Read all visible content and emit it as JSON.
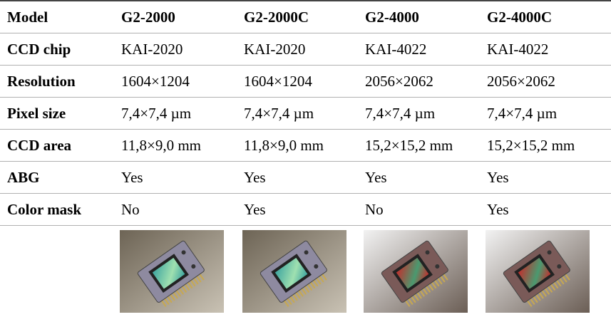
{
  "table": {
    "header": [
      "Model",
      "G2-2000",
      "G2-2000C",
      "G2-4000",
      "G2-4000C"
    ],
    "rows": [
      [
        "CCD chip",
        "KAI-2020",
        "KAI-2020",
        "KAI-4022",
        "KAI-4022"
      ],
      [
        "Resolution",
        "1604×1204",
        "1604×1204",
        "2056×2062",
        "2056×2062"
      ],
      [
        "Pixel size",
        "7,4×7,4 µm",
        "7,4×7,4 µm",
        "7,4×7,4 µm",
        "7,4×7,4 µm"
      ],
      [
        "CCD area",
        "11,8×9,0 mm",
        "11,8×9,0 mm",
        "15,2×15,2 mm",
        "15,2×15,2 mm"
      ],
      [
        "ABG",
        "Yes",
        "Yes",
        "Yes",
        "Yes"
      ],
      [
        "Color mask",
        "No",
        "Yes",
        "No",
        "Yes"
      ]
    ]
  }
}
